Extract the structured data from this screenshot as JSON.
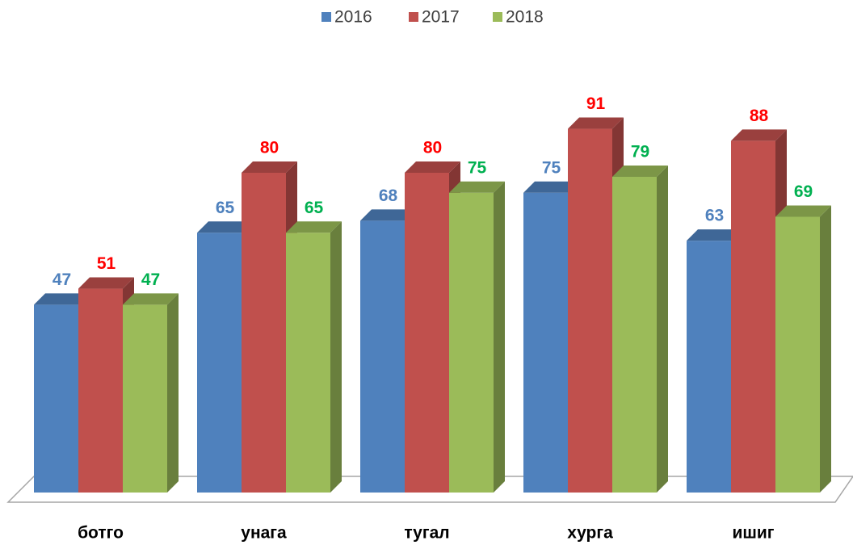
{
  "chart_data": {
    "type": "bar3d",
    "categories": [
      "ботго",
      "унага",
      "тугал",
      "хурга",
      "ишиг"
    ],
    "series": [
      {
        "name": "2016",
        "color": "#4f81bd",
        "label_color": "#4f81bd",
        "values": [
          47,
          65,
          68,
          75,
          63
        ]
      },
      {
        "name": "2017",
        "color": "#c0504d",
        "label_color": "#ff0000",
        "values": [
          51,
          80,
          80,
          91,
          88
        ]
      },
      {
        "name": "2018",
        "color": "#9bbb59",
        "label_color": "#00b050",
        "values": [
          47,
          65,
          75,
          79,
          69
        ]
      }
    ],
    "ylim": [
      0,
      100
    ],
    "legend": "top"
  }
}
